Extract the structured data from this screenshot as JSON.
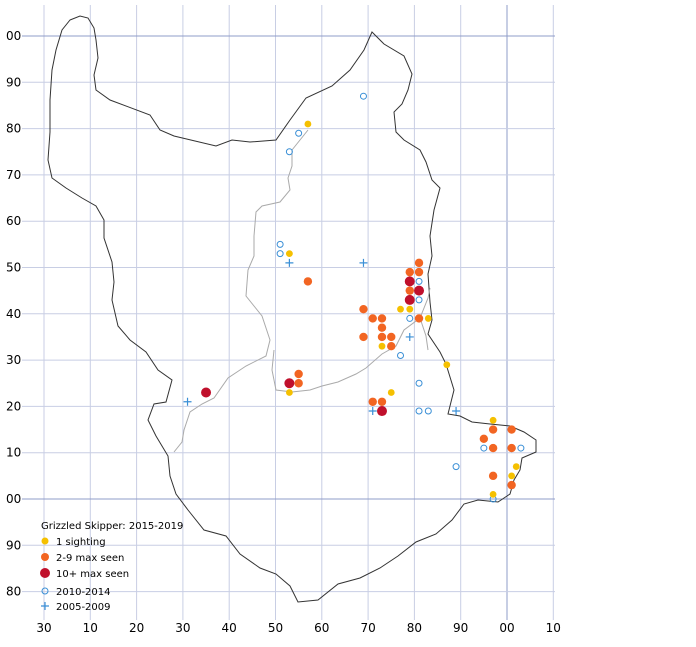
{
  "map": {
    "grid": {
      "x_axis_labels": [
        "30",
        "10",
        "20",
        "30",
        "40",
        "50",
        "60",
        "70",
        "80",
        "90",
        "00",
        "10"
      ],
      "y_axis_labels": [
        "00",
        "90",
        "80",
        "70",
        "60",
        "50",
        "40",
        "30",
        "20",
        "10",
        "00",
        "90",
        "80"
      ]
    },
    "legend": {
      "title": "Grizzled Skipper:  2015-2019",
      "items": [
        {
          "label": "1 sighting",
          "symbol": "small-dot",
          "color": "#F5C000"
        },
        {
          "label": "2-9 max seen",
          "symbol": "medium-dot",
          "color": "#F26522"
        },
        {
          "label": "10+ max seen",
          "symbol": "large-dot",
          "color": "#C0102C"
        },
        {
          "label": "2010-2014",
          "symbol": "open-circle",
          "color": "#3A8FD6"
        },
        {
          "label": "2005-2009",
          "symbol": "plus",
          "color": "#3A8FD6"
        }
      ]
    },
    "colors": {
      "grid": "#C8CEE4",
      "major_grid": "#8F9CC8",
      "county_border": "#333333",
      "district_border": "#AAAAAA",
      "one_sighting": "#F5C000",
      "two_to_nine": "#F26522",
      "ten_plus": "#C0102C",
      "older_records": "#3A8FD6"
    },
    "records": {
      "one_sighting": [
        [
          57,
          81
        ],
        [
          53,
          53
        ],
        [
          79,
          41
        ],
        [
          77,
          41
        ],
        [
          83,
          39
        ],
        [
          73,
          33
        ],
        [
          75,
          23
        ],
        [
          53,
          23
        ],
        [
          87,
          29
        ],
        [
          97,
          17
        ],
        [
          102,
          7
        ],
        [
          101,
          5
        ],
        [
          97,
          1
        ]
      ],
      "two_to_nine": [
        [
          57,
          47
        ],
        [
          81,
          51
        ],
        [
          79,
          49
        ],
        [
          81,
          49
        ],
        [
          79,
          45
        ],
        [
          69,
          41
        ],
        [
          71,
          39
        ],
        [
          73,
          39
        ],
        [
          73,
          37
        ],
        [
          69,
          35
        ],
        [
          73,
          35
        ],
        [
          75,
          35
        ],
        [
          75,
          33
        ],
        [
          81,
          39
        ],
        [
          55,
          27
        ],
        [
          55,
          25
        ],
        [
          71,
          21
        ],
        [
          73,
          21
        ],
        [
          97,
          15
        ],
        [
          101,
          15
        ],
        [
          95,
          13
        ],
        [
          97,
          11
        ],
        [
          101,
          11
        ],
        [
          97,
          5
        ],
        [
          101,
          3
        ]
      ],
      "ten_plus": [
        [
          79,
          47
        ],
        [
          81,
          45
        ],
        [
          79,
          43
        ],
        [
          35,
          23
        ],
        [
          53,
          25
        ],
        [
          73,
          19
        ]
      ],
      "open_2010_2014": [
        [
          69,
          87
        ],
        [
          55,
          79
        ],
        [
          53,
          75
        ],
        [
          51,
          55
        ],
        [
          51,
          53
        ],
        [
          81,
          47
        ],
        [
          81,
          43
        ],
        [
          79,
          39
        ],
        [
          77,
          31
        ],
        [
          81,
          25
        ],
        [
          81,
          19
        ],
        [
          83,
          19
        ],
        [
          95,
          11
        ],
        [
          103,
          11
        ],
        [
          89,
          7
        ],
        [
          97,
          0
        ]
      ],
      "plus_2005_2009": [
        [
          53,
          51
        ],
        [
          69,
          51
        ],
        [
          79,
          35
        ],
        [
          31,
          21
        ],
        [
          71,
          19
        ],
        [
          89,
          19
        ],
        [
          101,
          11
        ]
      ]
    }
  }
}
